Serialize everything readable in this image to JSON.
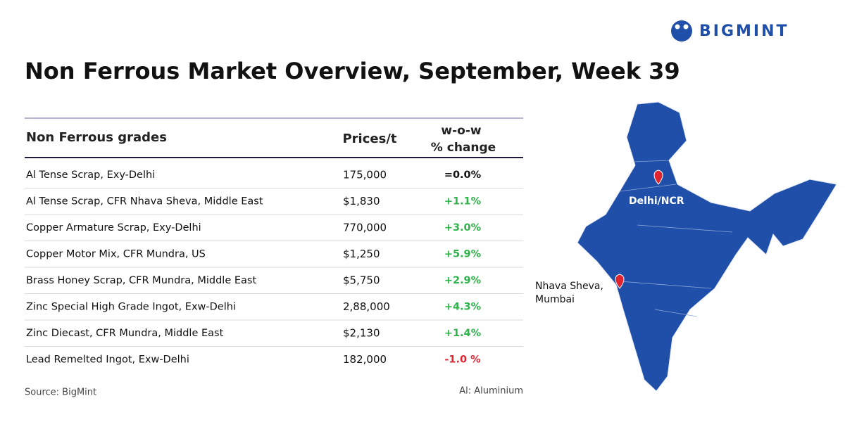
{
  "header": {
    "brand": "BIGMINT",
    "title": "Non Ferrous Market Overview, September, Week 39"
  },
  "table": {
    "columns": [
      "Non Ferrous grades",
      "Prices/t",
      [
        "w-o-w",
        "% change"
      ]
    ],
    "rows": [
      [
        "Al Tense Scrap, Exy-Delhi",
        "175,000",
        "=0.0%"
      ],
      [
        "Al Tense Scrap, CFR Nhava Sheva, Middle East",
        "$1,830",
        "+1.1%"
      ],
      [
        "Copper Armature Scrap, Exy-Delhi",
        "770,000",
        "+3.0%"
      ],
      [
        "Copper Motor Mix, CFR Mundra, US",
        "$1,250",
        "+5.9%"
      ],
      [
        "Brass Honey Scrap, CFR Mundra, Middle East",
        "$5,750",
        "+2.9%"
      ],
      [
        "Zinc Special High Grade Ingot, Exw-Delhi",
        "2,88,000",
        "+4.3%"
      ],
      [
        "Zinc Diecast, CFR Mundra, Middle East",
        "$2,130",
        "+1.4%"
      ],
      [
        "Lead Remelted Ingot, Exw-Delhi",
        "182,000",
        "-1.0 %"
      ]
    ],
    "change_colors": [
      "#111111",
      "#2fb34a",
      "#2fb34a",
      "#2fb34a",
      "#2fb34a",
      "#2fb34a",
      "#2fb34a",
      "#e0242f"
    ]
  },
  "footer": {
    "source": "Source: BigMint",
    "note": "Al: Aluminium"
  },
  "map": {
    "labels": [
      [
        "Delhi/NCR"
      ],
      [
        "Nhava Sheva,",
        "Mumbai"
      ]
    ]
  }
}
